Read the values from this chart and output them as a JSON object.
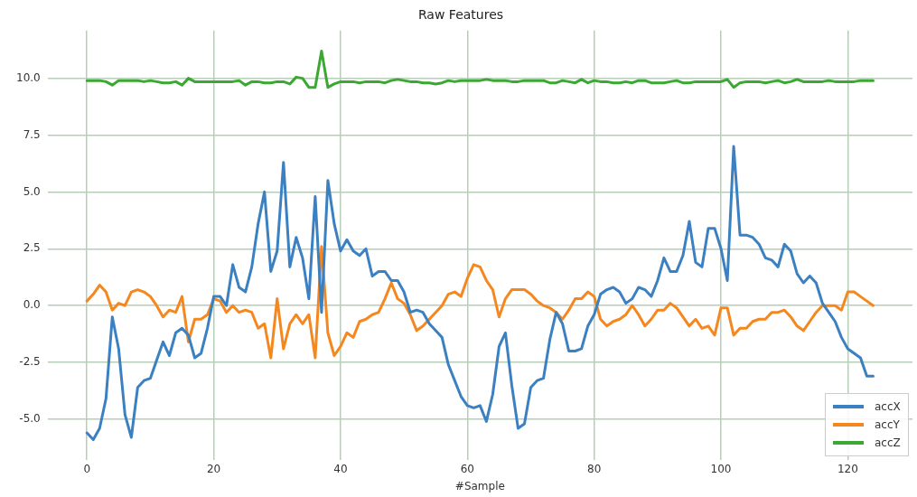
{
  "chart_data": {
    "type": "line",
    "title": "Raw Features",
    "xlabel": "#Sample",
    "x": [
      0,
      1,
      2,
      3,
      4,
      5,
      6,
      7,
      8,
      9,
      10,
      11,
      12,
      13,
      14,
      15,
      16,
      17,
      18,
      19,
      20,
      21,
      22,
      23,
      24,
      25,
      26,
      27,
      28,
      29,
      30,
      31,
      32,
      33,
      34,
      35,
      36,
      37,
      38,
      39,
      40,
      41,
      42,
      43,
      44,
      45,
      46,
      47,
      48,
      49,
      50,
      51,
      52,
      53,
      54,
      55,
      56,
      57,
      58,
      59,
      60,
      61,
      62,
      63,
      64,
      65,
      66,
      67,
      68,
      69,
      70,
      71,
      72,
      73,
      74,
      75,
      76,
      77,
      78,
      79,
      80,
      81,
      82,
      83,
      84,
      85,
      86,
      87,
      88,
      89,
      90,
      91,
      92,
      93,
      94,
      95,
      96,
      97,
      98,
      99,
      100,
      101,
      102,
      103,
      104,
      105,
      106,
      107,
      108,
      109,
      110,
      111,
      112,
      113,
      114,
      115,
      116,
      117,
      118,
      119,
      120,
      121,
      122,
      123,
      124
    ],
    "series": [
      {
        "name": "accX",
        "color": "#3b80c0",
        "values": [
          -5.6,
          -5.9,
          -5.4,
          -4.1,
          -0.5,
          -1.9,
          -4.8,
          -5.8,
          -3.6,
          -3.3,
          -3.2,
          -2.4,
          -1.6,
          -2.2,
          -1.2,
          -1.0,
          -1.3,
          -2.3,
          -2.1,
          -1.0,
          0.4,
          0.4,
          0.0,
          1.8,
          0.8,
          0.6,
          1.7,
          3.6,
          5.0,
          1.5,
          2.4,
          6.3,
          1.7,
          3.0,
          2.1,
          0.3,
          4.8,
          -0.3,
          5.5,
          3.6,
          2.4,
          2.9,
          2.4,
          2.2,
          2.5,
          1.3,
          1.5,
          1.5,
          1.1,
          1.1,
          0.6,
          -0.3,
          -0.2,
          -0.3,
          -0.8,
          -1.1,
          -1.4,
          -2.6,
          -3.3,
          -4.0,
          -4.4,
          -4.5,
          -4.4,
          -5.1,
          -3.9,
          -1.8,
          -1.2,
          -3.5,
          -5.4,
          -5.2,
          -3.6,
          -3.3,
          -3.2,
          -1.5,
          -0.3,
          -0.8,
          -2.0,
          -2.0,
          -1.9,
          -0.9,
          -0.4,
          0.5,
          0.7,
          0.8,
          0.6,
          0.1,
          0.3,
          0.8,
          0.7,
          0.4,
          1.1,
          2.1,
          1.5,
          1.5,
          2.2,
          3.7,
          1.9,
          1.7,
          3.4,
          3.4,
          2.5,
          1.1,
          7.0,
          3.1,
          3.1,
          3.0,
          2.7,
          2.1,
          2.0,
          1.7,
          2.7,
          2.4,
          1.4,
          1.0,
          1.3,
          1.0,
          0.1,
          -0.3,
          -0.7,
          -1.4,
          -1.9,
          -2.1,
          -2.3,
          -3.1,
          -3.1
        ]
      },
      {
        "name": "accY",
        "color": "#f5871f",
        "values": [
          0.2,
          0.5,
          0.9,
          0.6,
          -0.2,
          0.1,
          0.0,
          0.6,
          0.7,
          0.6,
          0.4,
          0.0,
          -0.5,
          -0.2,
          -0.3,
          0.4,
          -1.6,
          -0.6,
          -0.6,
          -0.4,
          0.3,
          0.2,
          -0.3,
          0.0,
          -0.3,
          -0.2,
          -0.3,
          -1.0,
          -0.8,
          -2.3,
          0.3,
          -1.9,
          -0.8,
          -0.4,
          -0.8,
          -0.4,
          -2.3,
          2.6,
          -1.2,
          -2.2,
          -1.8,
          -1.2,
          -1.4,
          -0.7,
          -0.6,
          -0.4,
          -0.3,
          0.3,
          1.0,
          0.3,
          0.1,
          -0.4,
          -1.1,
          -0.9,
          -0.6,
          -0.3,
          0.0,
          0.5,
          0.6,
          0.4,
          1.2,
          1.8,
          1.7,
          1.1,
          0.7,
          -0.5,
          0.3,
          0.7,
          0.7,
          0.7,
          0.5,
          0.2,
          0.0,
          -0.1,
          -0.3,
          -0.6,
          -0.2,
          0.3,
          0.3,
          0.6,
          0.4,
          -0.6,
          -0.9,
          -0.7,
          -0.6,
          -0.4,
          0.0,
          -0.4,
          -0.9,
          -0.6,
          -0.2,
          -0.2,
          0.1,
          -0.1,
          -0.5,
          -0.9,
          -0.6,
          -1.0,
          -0.9,
          -1.3,
          -0.1,
          -0.1,
          -1.3,
          -1.0,
          -1.0,
          -0.7,
          -0.6,
          -0.6,
          -0.3,
          -0.3,
          -0.2,
          -0.5,
          -0.9,
          -1.1,
          -0.7,
          -0.3,
          0.0,
          0.0,
          0.0,
          -0.2,
          0.6,
          0.6,
          0.4,
          0.2,
          0.0
        ]
      },
      {
        "name": "accZ",
        "color": "#3aa832",
        "values": [
          9.9,
          9.9,
          9.9,
          9.85,
          9.7,
          9.9,
          9.9,
          9.9,
          9.9,
          9.85,
          9.9,
          9.85,
          9.8,
          9.8,
          9.85,
          9.7,
          10.0,
          9.85,
          9.85,
          9.85,
          9.85,
          9.85,
          9.85,
          9.85,
          9.9,
          9.7,
          9.85,
          9.85,
          9.8,
          9.8,
          9.85,
          9.85,
          9.75,
          10.05,
          10.0,
          9.6,
          9.6,
          11.2,
          9.6,
          9.75,
          9.85,
          9.85,
          9.85,
          9.8,
          9.85,
          9.85,
          9.85,
          9.8,
          9.9,
          9.95,
          9.9,
          9.85,
          9.85,
          9.8,
          9.8,
          9.75,
          9.8,
          9.9,
          9.85,
          9.9,
          9.9,
          9.9,
          9.9,
          9.95,
          9.9,
          9.9,
          9.9,
          9.85,
          9.85,
          9.9,
          9.9,
          9.9,
          9.9,
          9.8,
          9.8,
          9.9,
          9.85,
          9.8,
          9.95,
          9.8,
          9.9,
          9.85,
          9.85,
          9.8,
          9.8,
          9.85,
          9.8,
          9.9,
          9.9,
          9.8,
          9.8,
          9.8,
          9.85,
          9.9,
          9.8,
          9.8,
          9.85,
          9.85,
          9.85,
          9.85,
          9.85,
          9.95,
          9.6,
          9.8,
          9.85,
          9.85,
          9.85,
          9.8,
          9.85,
          9.9,
          9.8,
          9.85,
          9.95,
          9.85,
          9.85,
          9.85,
          9.85,
          9.9,
          9.85,
          9.85,
          9.85,
          9.85,
          9.9,
          9.9,
          9.9
        ]
      }
    ],
    "xlim": [
      -6.2,
      130.2
    ],
    "ylim": [
      -6.8,
      12.1
    ],
    "xticks": [
      0,
      20,
      40,
      60,
      80,
      100,
      120
    ],
    "yticks": [
      {
        "value": -5,
        "label": "-5.0"
      },
      {
        "value": -2.5,
        "label": "-2.5"
      },
      {
        "value": 0,
        "label": "0.0"
      },
      {
        "value": 2.5,
        "label": "2.5"
      },
      {
        "value": 5,
        "label": "5.0"
      },
      {
        "value": 7.5,
        "label": "7.5"
      },
      {
        "value": 10,
        "label": "10.0"
      }
    ],
    "grid": true,
    "legend": "bottom right",
    "marker": "none",
    "line_style": "solid"
  }
}
